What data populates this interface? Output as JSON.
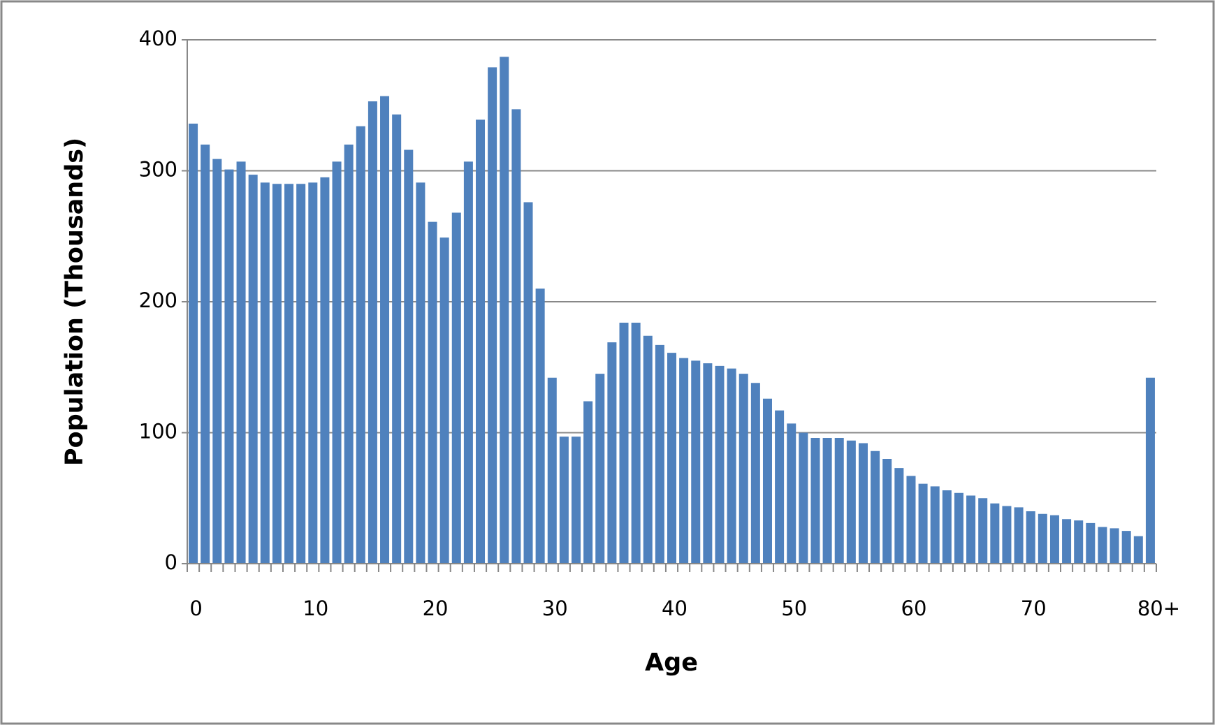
{
  "chart_data": {
    "type": "bar",
    "x_label": "Age",
    "y_label": "Population (Thousands)",
    "categories": [
      "0",
      null,
      null,
      null,
      null,
      null,
      null,
      null,
      null,
      null,
      "10",
      null,
      null,
      null,
      null,
      null,
      null,
      null,
      null,
      null,
      "20",
      null,
      null,
      null,
      null,
      null,
      null,
      null,
      null,
      null,
      "30",
      null,
      null,
      null,
      null,
      null,
      null,
      null,
      null,
      null,
      "40",
      null,
      null,
      null,
      null,
      null,
      null,
      null,
      null,
      null,
      "50",
      null,
      null,
      null,
      null,
      null,
      null,
      null,
      null,
      null,
      "60",
      null,
      null,
      null,
      null,
      null,
      null,
      null,
      null,
      null,
      "70",
      null,
      null,
      null,
      null,
      null,
      null,
      null,
      null,
      null,
      "80+"
    ],
    "values": [
      336,
      320,
      309,
      301,
      307,
      297,
      291,
      290,
      290,
      290,
      291,
      295,
      307,
      320,
      334,
      353,
      357,
      343,
      316,
      291,
      261,
      249,
      268,
      307,
      339,
      379,
      387,
      347,
      276,
      210,
      142,
      97,
      97,
      124,
      145,
      169,
      184,
      184,
      174,
      167,
      161,
      157,
      155,
      153,
      151,
      149,
      145,
      138,
      126,
      117,
      107,
      100,
      96,
      96,
      96,
      94,
      92,
      86,
      80,
      73,
      67,
      61,
      59,
      56,
      54,
      52,
      50,
      46,
      44,
      43,
      40,
      38,
      37,
      34,
      33,
      31,
      28,
      27,
      25,
      21,
      142
    ],
    "color": "#4f81bd",
    "ylim": [
      0,
      400
    ],
    "yticks": [
      0,
      100,
      200,
      300,
      400
    ],
    "grid": true
  }
}
